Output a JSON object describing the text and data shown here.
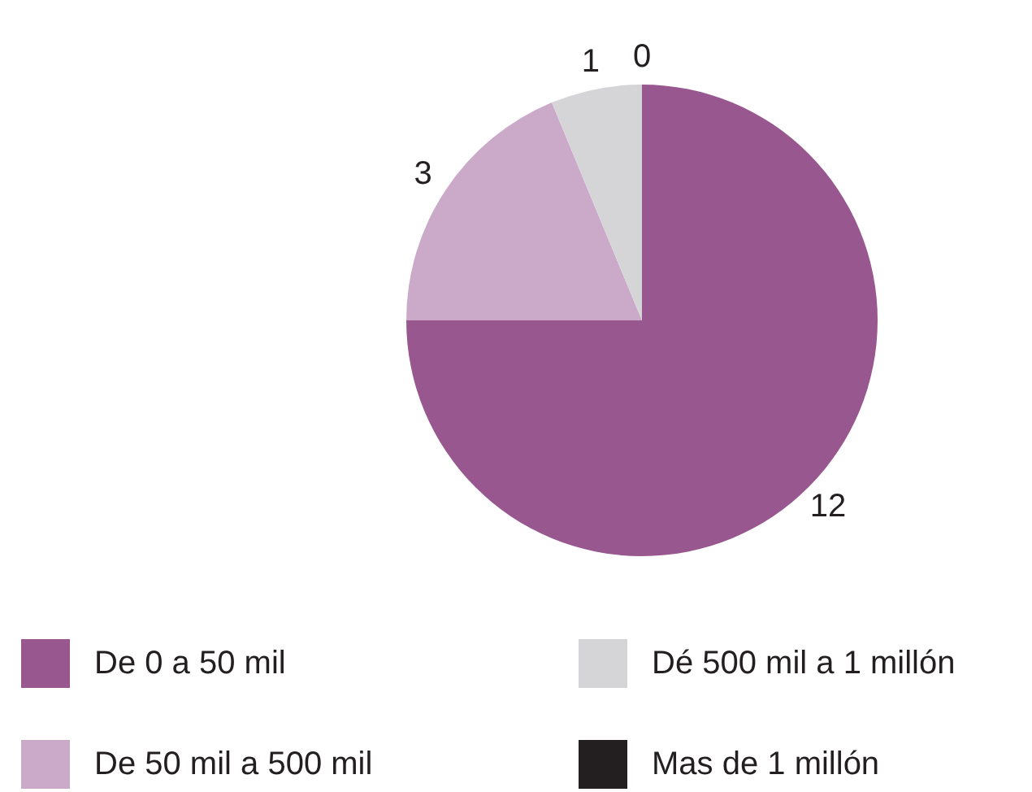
{
  "chart_data": {
    "type": "pie",
    "categories": [
      "De 0 a 50 mil",
      "De 50 mil a 500 mil",
      "Dé 500 mil a 1 millón",
      "Mas de 1 millón"
    ],
    "values": [
      12,
      3,
      1,
      0
    ],
    "colors": [
      "#98578f",
      "#cba9c9",
      "#d5d5d7",
      "#231f20"
    ],
    "value_labels": [
      "12",
      "3",
      "1",
      "0"
    ],
    "legend": "bottom"
  }
}
